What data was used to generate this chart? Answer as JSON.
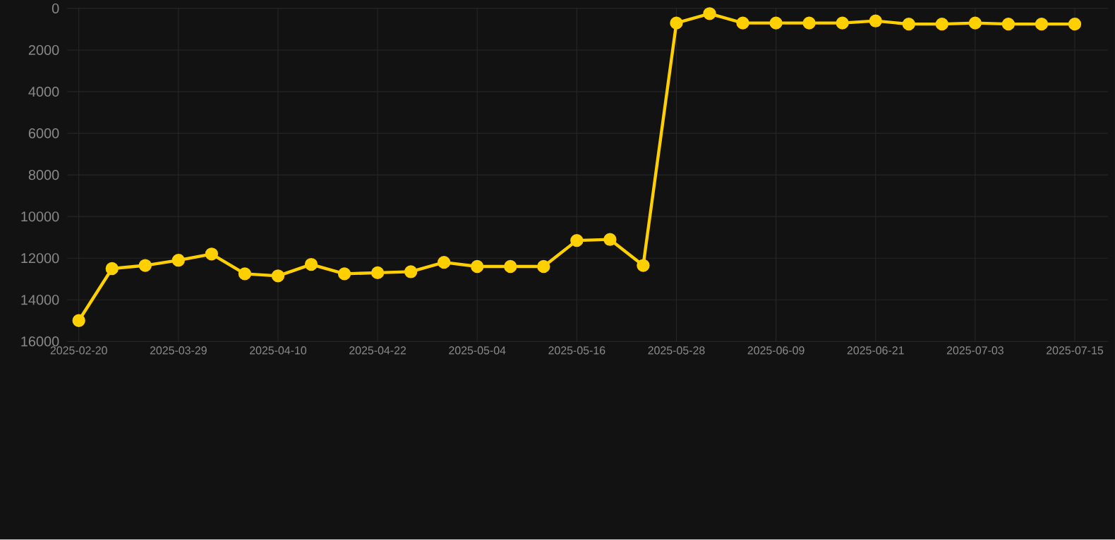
{
  "chart_data": {
    "type": "line",
    "categories": [
      "2025-02-20",
      null,
      null,
      "2025-03-29",
      null,
      null,
      "2025-04-10",
      null,
      null,
      "2025-04-22",
      null,
      null,
      "2025-05-04",
      null,
      null,
      "2025-05-16",
      null,
      null,
      "2025-05-28",
      null,
      null,
      "2025-06-09",
      null,
      null,
      "2025-06-21",
      null,
      null,
      "2025-07-03",
      null,
      null,
      "2025-07-15"
    ],
    "series": [
      {
        "color": "#ffd000",
        "values": [
          15000,
          12500,
          12350,
          12100,
          11800,
          12750,
          12850,
          12300,
          12750,
          12700,
          12650,
          12200,
          12400,
          12400,
          12400,
          11150,
          11100,
          12350,
          700,
          250,
          700,
          700,
          700,
          700,
          600,
          750,
          750,
          700,
          750,
          750,
          750
        ]
      }
    ],
    "ylim": [
      16000,
      0
    ],
    "yticks": [
      0,
      2000,
      4000,
      6000,
      8000,
      10000,
      12000,
      14000,
      16000
    ],
    "grid": true,
    "marker": "circle",
    "line_style": "solid"
  }
}
